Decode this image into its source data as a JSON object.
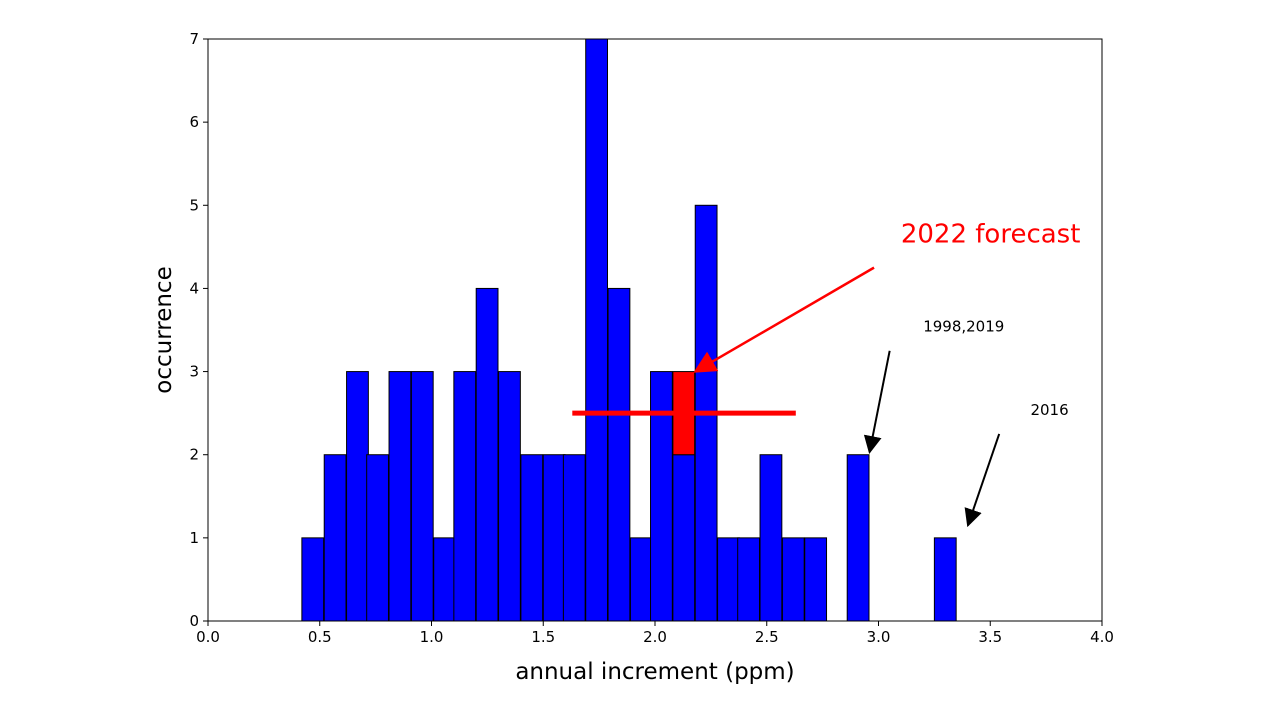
{
  "chart_data": {
    "type": "bar",
    "xlabel": "annual increment (ppm)",
    "ylabel": "occurrence",
    "xlim": [
      0,
      4
    ],
    "ylim": [
      0,
      7
    ],
    "xticks": [
      "0.0",
      "0.5",
      "1.0",
      "1.5",
      "2.0",
      "2.5",
      "3.0",
      "3.5",
      "4.0"
    ],
    "yticks": [
      "0",
      "1",
      "2",
      "3",
      "4",
      "5",
      "6",
      "7"
    ],
    "grid": false,
    "bar_color": "#0000ff",
    "highlight_color": "#ff0000",
    "bin_width": 0.0975,
    "bins": [
      {
        "x": 0.42,
        "count": 1
      },
      {
        "x": 0.52,
        "count": 2
      },
      {
        "x": 0.62,
        "count": 3
      },
      {
        "x": 0.71,
        "count": 2
      },
      {
        "x": 0.81,
        "count": 3
      },
      {
        "x": 0.91,
        "count": 3
      },
      {
        "x": 1.01,
        "count": 1
      },
      {
        "x": 1.1,
        "count": 3
      },
      {
        "x": 1.2,
        "count": 4
      },
      {
        "x": 1.3,
        "count": 3
      },
      {
        "x": 1.4,
        "count": 2
      },
      {
        "x": 1.5,
        "count": 2
      },
      {
        "x": 1.59,
        "count": 2
      },
      {
        "x": 1.69,
        "count": 7
      },
      {
        "x": 1.79,
        "count": 4
      },
      {
        "x": 1.89,
        "count": 1
      },
      {
        "x": 1.98,
        "count": 3
      },
      {
        "x": 2.08,
        "count": 2
      },
      {
        "x": 2.18,
        "count": 5
      },
      {
        "x": 2.28,
        "count": 1
      },
      {
        "x": 2.37,
        "count": 1
      },
      {
        "x": 2.47,
        "count": 2
      },
      {
        "x": 2.57,
        "count": 1
      },
      {
        "x": 2.67,
        "count": 1
      },
      {
        "x": 2.86,
        "count": 2
      },
      {
        "x": 3.25,
        "count": 1
      }
    ],
    "forecast": {
      "bin_x": 2.08,
      "bottom": 2,
      "top": 3,
      "center": 2.13,
      "x_low": 1.63,
      "x_high": 2.63,
      "y": 2.5
    },
    "annotations": [
      {
        "text": "2022 forecast",
        "text_x": 3.1,
        "text_y": 4.55,
        "from": [
          2.98,
          4.25
        ],
        "to": [
          2.18,
          3.0
        ],
        "color": "#ff0000",
        "size": "large"
      },
      {
        "text": "1998,2019",
        "text_x": 3.2,
        "text_y": 3.48,
        "from": [
          3.05,
          3.25
        ],
        "to": [
          2.96,
          2.03
        ],
        "color": "#000000",
        "size": "small"
      },
      {
        "text": "2016",
        "text_x": 3.68,
        "text_y": 2.48,
        "from": [
          3.54,
          2.25
        ],
        "to": [
          3.4,
          1.15
        ],
        "color": "#000000",
        "size": "small"
      }
    ]
  }
}
